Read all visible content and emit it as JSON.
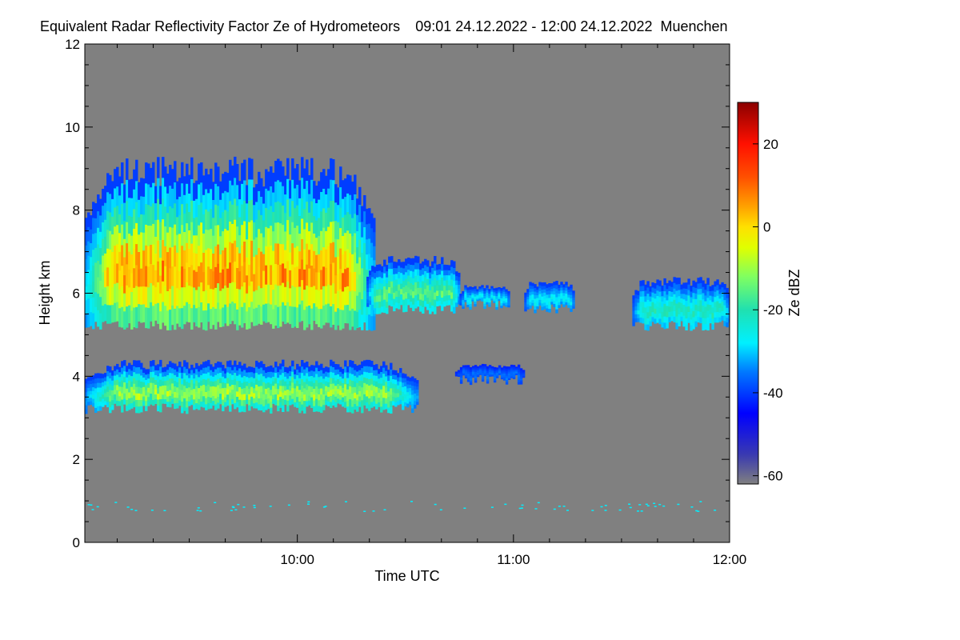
{
  "chart_data": {
    "type": "heatmap",
    "title": "Equivalent Radar Reflectivity Factor Ze of Hydrometeors",
    "time_range": "09:01 24.12.2022 - 12:00 24.12.2022",
    "location": "Muenchen",
    "xlabel": "Time UTC",
    "ylabel": "Height km",
    "xlim_hours": [
      9.0167,
      12.0
    ],
    "ylim_km": [
      0,
      12
    ],
    "x_ticks": [
      {
        "value": 10.0,
        "label": "10:00"
      },
      {
        "value": 11.0,
        "label": "11:00"
      },
      {
        "value": 12.0,
        "label": "12:00"
      }
    ],
    "y_ticks": [
      {
        "value": 0,
        "label": "0"
      },
      {
        "value": 2,
        "label": "2"
      },
      {
        "value": 4,
        "label": "4"
      },
      {
        "value": 6,
        "label": "6"
      },
      {
        "value": 8,
        "label": "8"
      },
      {
        "value": 10,
        "label": "10"
      },
      {
        "value": 12,
        "label": "12"
      }
    ],
    "background_color": "#808080",
    "colorbar": {
      "label": "Ze dBZ",
      "range": [
        -62,
        30
      ],
      "ticks": [
        {
          "value": 20,
          "label": "20"
        },
        {
          "value": 0,
          "label": "0"
        },
        {
          "value": -20,
          "label": "-20"
        },
        {
          "value": -40,
          "label": "-40"
        },
        {
          "value": -60,
          "label": "-60"
        }
      ],
      "stops": [
        {
          "value": -62,
          "color": "#808080"
        },
        {
          "value": -55,
          "color": "#3a3ab0"
        },
        {
          "value": -45,
          "color": "#0000ff"
        },
        {
          "value": -35,
          "color": "#0078ff"
        },
        {
          "value": -28,
          "color": "#00f0ff"
        },
        {
          "value": -20,
          "color": "#20e0b0"
        },
        {
          "value": -12,
          "color": "#80ff60"
        },
        {
          "value": -5,
          "color": "#e0ff00"
        },
        {
          "value": 0,
          "color": "#ffe000"
        },
        {
          "value": 5,
          "color": "#ffa000"
        },
        {
          "value": 12,
          "color": "#ff5000"
        },
        {
          "value": 20,
          "color": "#ff1000"
        },
        {
          "value": 30,
          "color": "#8b0000"
        }
      ]
    },
    "echo_regions": [
      {
        "name": "upper-cloud-main",
        "t_start": 9.017,
        "t_end": 10.35,
        "h_bottom": 5.1,
        "h_top": 9.3,
        "ze_edge": -40,
        "ze_core": 8
      },
      {
        "name": "upper-cloud-mid",
        "t_start": 10.32,
        "t_end": 10.75,
        "h_bottom": 5.5,
        "h_top": 6.9,
        "ze_edge": -40,
        "ze_core": -14
      },
      {
        "name": "upper-cloud-fragment-1",
        "t_start": 10.75,
        "t_end": 10.98,
        "h_bottom": 5.6,
        "h_top": 6.2,
        "ze_edge": -40,
        "ze_core": -26
      },
      {
        "name": "upper-cloud-fragment-2",
        "t_start": 11.05,
        "t_end": 11.28,
        "h_bottom": 5.5,
        "h_top": 6.3,
        "ze_edge": -40,
        "ze_core": -26
      },
      {
        "name": "upper-cloud-fragment-3",
        "t_start": 11.55,
        "t_end": 12.0,
        "h_bottom": 5.1,
        "h_top": 6.4,
        "ze_edge": -40,
        "ze_core": -20
      },
      {
        "name": "lower-cloud-layer",
        "t_start": 9.017,
        "t_end": 10.55,
        "h_bottom": 3.1,
        "h_top": 4.4,
        "ze_edge": -40,
        "ze_core": -8
      },
      {
        "name": "lower-cloud-fragment",
        "t_start": 10.73,
        "t_end": 11.05,
        "h_bottom": 3.8,
        "h_top": 4.3,
        "ze_edge": -42,
        "ze_core": -35
      }
    ],
    "near_surface_clutter": {
      "h_km": [
        0.75,
        1.0
      ],
      "ze": -28
    }
  }
}
